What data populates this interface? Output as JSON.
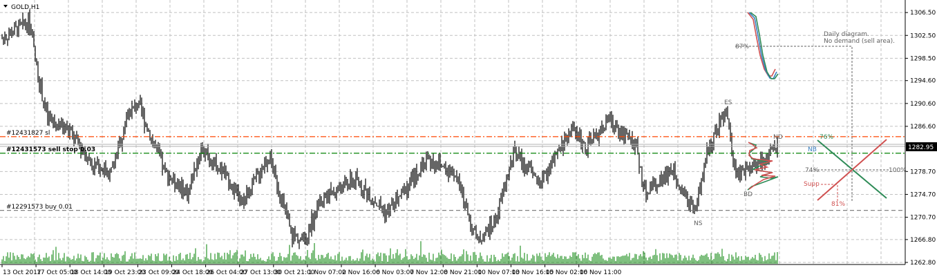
{
  "symbol_title": "GOLD,H1",
  "chart_data": {
    "type": "candlestick-ohlc-bars",
    "symbol": "GOLD",
    "timeframe": "H1",
    "ylim": [
      1262.8,
      1308
    ],
    "y_ticks": [
      "1306.50",
      "1302.50",
      "1298.50",
      "1294.60",
      "1290.60",
      "1286.60",
      "1278.70",
      "1274.70",
      "1270.70",
      "1266.80",
      "1262.80"
    ],
    "current_price": "1282.95",
    "x_ticks": [
      "13 Oct 2017",
      "17 Oct 05:00",
      "18 Oct 14:00",
      "19 Oct 23:00",
      "23 Oct 09:00",
      "24 Oct 18:00",
      "26 Oct 04:00",
      "27 Oct 13:00",
      "30 Oct 21:00",
      "1 Nov 07:00",
      "2 Nov 16:00",
      "6 Nov 03:00",
      "7 Nov 12:00",
      "8 Nov 21:00",
      "10 Nov 07:00",
      "13 Nov 16:00",
      "15 Nov 02:00",
      "16 Nov 11:00"
    ],
    "grid": true,
    "price_path_approx": [
      [
        0,
        1302
      ],
      [
        0.03,
        1305
      ],
      [
        0.04,
        1295
      ],
      [
        0.05,
        1288
      ],
      [
        0.075,
        1285.7
      ],
      [
        0.1,
        1280
      ],
      [
        0.12,
        1278.5
      ],
      [
        0.14,
        1288.8
      ],
      [
        0.15,
        1290.6
      ],
      [
        0.165,
        1284.5
      ],
      [
        0.18,
        1278.5
      ],
      [
        0.205,
        1274.9
      ],
      [
        0.22,
        1282.7
      ],
      [
        0.245,
        1278.5
      ],
      [
        0.265,
        1273
      ],
      [
        0.295,
        1281.5
      ],
      [
        0.32,
        1267.6
      ],
      [
        0.335,
        1266.4
      ],
      [
        0.35,
        1273.7
      ],
      [
        0.39,
        1277.3
      ],
      [
        0.425,
        1271.3
      ],
      [
        0.47,
        1280.9
      ],
      [
        0.5,
        1278.5
      ],
      [
        0.525,
        1266.4
      ],
      [
        0.545,
        1270
      ],
      [
        0.565,
        1282
      ],
      [
        0.595,
        1276.7
      ],
      [
        0.63,
        1286.4
      ],
      [
        0.645,
        1282.7
      ],
      [
        0.67,
        1287.6
      ],
      [
        0.7,
        1283.3
      ],
      [
        0.71,
        1274.9
      ],
      [
        0.74,
        1279.1
      ],
      [
        0.765,
        1271.3
      ],
      [
        0.78,
        1282.7
      ],
      [
        0.8,
        1289.4
      ],
      [
        0.81,
        1277.9
      ],
      [
        0.85,
        1282
      ],
      [
        0.86,
        1284
      ]
    ],
    "order_lines": [
      {
        "label": "#12431827 sl",
        "price": 1284.8,
        "color": "#ff4500",
        "style": "dash-dot"
      },
      {
        "label": "#12431573 sell stop 0.03",
        "price": 1281.9,
        "color": "#008000",
        "style": "dash-dot"
      },
      {
        "label": "#12291573 buy 0.01",
        "price": 1271.9,
        "color": "#808080",
        "style": "dash"
      }
    ],
    "annotations": {
      "daily_line1": "Daily diagram.",
      "daily_line2": "No demand (sell area).",
      "pct87": "87%",
      "pct74": "74%",
      "pct100": "100%",
      "pct81": "81%",
      "pct76": "76%",
      "supp": "Supp",
      "nb": "NB",
      "es": "ES",
      "ns": "NS",
      "nd": "ND",
      "bd": "BD"
    },
    "colors": {
      "bars": "#000000",
      "volume": "#008000",
      "grid": "#c0c0c0",
      "red": "#d05050",
      "blue": "#3a7fc0",
      "green": "#2e8b57",
      "orange": "#ff4500"
    }
  }
}
